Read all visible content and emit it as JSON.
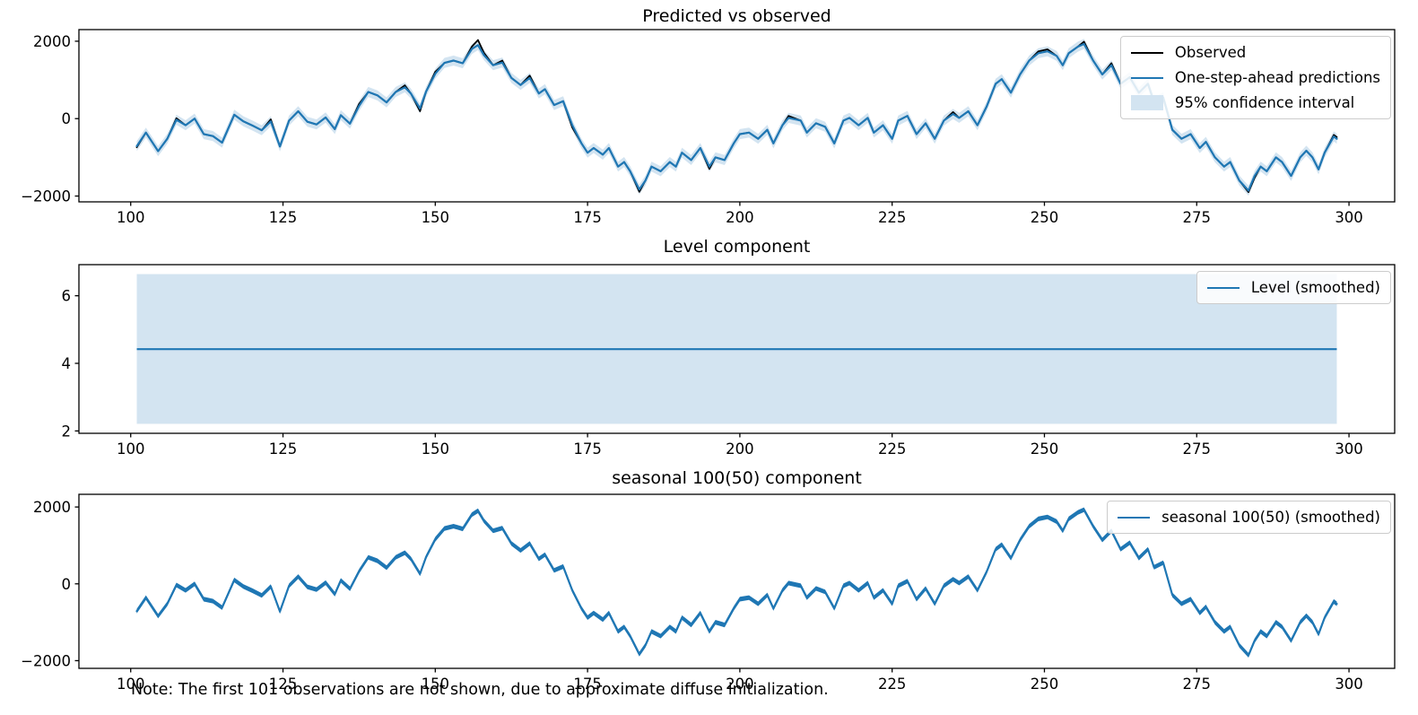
{
  "figure": {
    "note": "Note: The first 101 observations are not shown, due to approximate diffuse initialization."
  },
  "colors": {
    "observed": "#000000",
    "prediction": "#1f77b4",
    "confidence_band": "#d3e4f1",
    "axis": "#000000",
    "legend_border": "#cccccc",
    "background": "#ffffff"
  },
  "chart_data": [
    {
      "type": "line",
      "title": "Predicted vs observed",
      "legend": [
        "Observed",
        "One-step-ahead predictions",
        "95% confidence interval"
      ],
      "legend_position": "upper right",
      "grid": false,
      "xlim": [
        91.5,
        307.5
      ],
      "ylim": [
        -2150,
        2300
      ],
      "x_ticks": [
        100,
        125,
        150,
        175,
        200,
        225,
        250,
        275,
        300
      ],
      "x_tick_labels": [
        "100",
        "125",
        "150",
        "175",
        "200",
        "225",
        "250",
        "275",
        "300"
      ],
      "y_ticks": [
        2000,
        0,
        -2000
      ],
      "y_tick_labels": [
        "2000",
        "0",
        "−2000"
      ],
      "x": [
        101,
        102.5,
        104.5,
        106,
        107.5,
        109,
        110.5,
        112,
        113.5,
        115,
        117,
        118.5,
        120,
        121.5,
        123,
        124.5,
        126,
        127.5,
        129,
        130.5,
        132,
        133.5,
        134.5,
        136,
        137.5,
        139,
        140.5,
        142,
        143.5,
        145,
        146,
        147.5,
        148.5,
        150,
        151.5,
        153,
        154.5,
        156,
        157,
        158,
        159.5,
        161,
        162.5,
        164,
        165.5,
        167,
        168,
        169.5,
        171,
        172.5,
        174,
        175,
        176,
        177.5,
        178.5,
        180,
        181,
        182,
        183.5,
        184.5,
        185.5,
        187,
        188.5,
        189.5,
        190.5,
        192,
        193.5,
        195,
        196,
        197.5,
        199,
        200,
        201.5,
        203,
        204.5,
        205.5,
        207,
        208,
        210,
        211,
        212.5,
        214,
        215.5,
        217,
        218,
        219.5,
        221,
        222,
        223.5,
        225,
        226,
        227.5,
        229,
        230.5,
        232,
        233.5,
        235,
        236,
        237.5,
        239,
        240.5,
        242,
        243,
        244.5,
        246,
        247.5,
        249,
        250.5,
        252,
        253,
        254,
        255.5,
        256.5,
        258,
        259.5,
        261,
        262.5,
        264,
        265.5,
        267,
        268,
        269.5,
        271,
        272.5,
        274,
        275.5,
        276.5,
        278,
        279.5,
        280.5,
        282,
        283.5,
        284.5,
        285.5,
        286.5,
        288,
        289,
        290.5,
        292,
        293,
        294,
        295,
        296,
        297.5,
        298
      ],
      "series": [
        {
          "name": "Observed",
          "color": "#000000",
          "values": [
            -740,
            -360,
            -840,
            -520,
            10,
            -170,
            0,
            -400,
            -450,
            -620,
            100,
            -70,
            -180,
            -300,
            -20,
            -720,
            -50,
            190,
            -80,
            -150,
            30,
            -270,
            90,
            -130,
            380,
            690,
            600,
            420,
            690,
            860,
            650,
            190,
            700,
            1210,
            1440,
            1500,
            1430,
            1860,
            2030,
            1700,
            1380,
            1500,
            1050,
            870,
            1110,
            650,
            760,
            350,
            450,
            -230,
            -640,
            -880,
            -760,
            -930,
            -760,
            -1240,
            -1120,
            -1360,
            -1890,
            -1600,
            -1240,
            -1360,
            -1120,
            -1240,
            -880,
            -1070,
            -760,
            -1300,
            -1000,
            -1070,
            -640,
            -400,
            -360,
            -520,
            -290,
            -640,
            -170,
            70,
            -50,
            -360,
            -120,
            -210,
            -640,
            -50,
            20,
            -170,
            20,
            -360,
            -170,
            -520,
            -50,
            70,
            -400,
            -120,
            -520,
            -50,
            170,
            20,
            190,
            -170,
            310,
            900,
            1020,
            670,
            1140,
            1500,
            1740,
            1790,
            1620,
            1380,
            1690,
            1860,
            1990,
            1500,
            1140,
            1430,
            900,
            1070,
            670,
            900,
            430,
            550,
            -290,
            -520,
            -400,
            -760,
            -600,
            -1000,
            -1240,
            -1120,
            -1600,
            -1900,
            -1530,
            -1240,
            -1360,
            -1000,
            -1120,
            -1480,
            -1000,
            -830,
            -1000,
            -1310,
            -880,
            -420,
            -480
          ]
        },
        {
          "name": "One-step-ahead predictions",
          "color": "#1f77b4",
          "values": [
            -710,
            -360,
            -840,
            -520,
            -30,
            -170,
            0,
            -400,
            -450,
            -620,
            100,
            -70,
            -180,
            -300,
            -70,
            -720,
            -50,
            190,
            -80,
            -150,
            30,
            -270,
            90,
            -130,
            330,
            690,
            600,
            420,
            690,
            810,
            650,
            260,
            700,
            1160,
            1440,
            1500,
            1430,
            1800,
            1900,
            1640,
            1380,
            1450,
            1050,
            870,
            1050,
            650,
            760,
            350,
            450,
            -170,
            -640,
            -880,
            -760,
            -930,
            -760,
            -1240,
            -1120,
            -1360,
            -1830,
            -1600,
            -1240,
            -1360,
            -1120,
            -1240,
            -880,
            -1070,
            -760,
            -1240,
            -1000,
            -1070,
            -640,
            -400,
            -360,
            -520,
            -290,
            -640,
            -170,
            20,
            -50,
            -360,
            -120,
            -210,
            -640,
            -50,
            20,
            -170,
            20,
            -360,
            -170,
            -520,
            -50,
            70,
            -400,
            -120,
            -520,
            -50,
            120,
            20,
            190,
            -170,
            310,
            900,
            1020,
            670,
            1140,
            1500,
            1690,
            1740,
            1620,
            1380,
            1690,
            1860,
            1930,
            1500,
            1140,
            1380,
            900,
            1070,
            670,
            900,
            430,
            550,
            -290,
            -520,
            -400,
            -760,
            -600,
            -1000,
            -1240,
            -1120,
            -1600,
            -1860,
            -1480,
            -1240,
            -1360,
            -1000,
            -1120,
            -1480,
            -1000,
            -830,
            -1000,
            -1310,
            -880,
            -460,
            -520
          ]
        },
        {
          "name": "95% confidence interval",
          "band_around": "One-step-ahead predictions",
          "halfwidth": 130,
          "color": "#d3e4f1"
        }
      ]
    },
    {
      "type": "line",
      "title": "Level component",
      "legend": [
        "Level (smoothed)"
      ],
      "legend_position": "upper right",
      "grid": false,
      "xlim": [
        91.5,
        307.5
      ],
      "ylim": [
        1.93,
        6.92
      ],
      "x_ticks": [
        100,
        125,
        150,
        175,
        200,
        225,
        250,
        275,
        300
      ],
      "x_tick_labels": [
        "100",
        "125",
        "150",
        "175",
        "200",
        "225",
        "250",
        "275",
        "300"
      ],
      "y_ticks": [
        6,
        4,
        2
      ],
      "y_tick_labels": [
        "6",
        "4",
        "2"
      ],
      "level": {
        "x_start": 101,
        "x_end": 298,
        "value": 4.42,
        "ci_low": 2.21,
        "ci_high": 6.64
      },
      "series": [
        {
          "name": "Level (smoothed)",
          "color": "#1f77b4"
        }
      ]
    },
    {
      "type": "line",
      "title": "seasonal 100(50) component",
      "legend": [
        "seasonal 100(50) (smoothed)"
      ],
      "legend_position": "upper right",
      "grid": false,
      "xlim": [
        91.5,
        307.5
      ],
      "ylim": [
        -2200,
        2330
      ],
      "x_ticks": [
        100,
        125,
        150,
        175,
        200,
        225,
        250,
        275,
        300
      ],
      "x_tick_labels": [
        "100",
        "125",
        "150",
        "175",
        "200",
        "225",
        "250",
        "275",
        "300"
      ],
      "y_ticks": [
        2000,
        0,
        -2000
      ],
      "y_tick_labels": [
        "2000",
        "0",
        "−2000"
      ],
      "x": [
        101,
        102.5,
        104.5,
        106,
        107.5,
        109,
        110.5,
        112,
        113.5,
        115,
        117,
        118.5,
        120,
        121.5,
        123,
        124.5,
        126,
        127.5,
        129,
        130.5,
        132,
        133.5,
        134.5,
        136,
        137.5,
        139,
        140.5,
        142,
        143.5,
        145,
        146,
        147.5,
        148.5,
        150,
        151.5,
        153,
        154.5,
        156,
        157,
        158,
        159.5,
        161,
        162.5,
        164,
        165.5,
        167,
        168,
        169.5,
        171,
        172.5,
        174,
        175,
        176,
        177.5,
        178.5,
        180,
        181,
        182,
        183.5,
        184.5,
        185.5,
        187,
        188.5,
        189.5,
        190.5,
        192,
        193.5,
        195,
        196,
        197.5,
        199,
        200,
        201.5,
        203,
        204.5,
        205.5,
        207,
        208,
        210,
        211,
        212.5,
        214,
        215.5,
        217,
        218,
        219.5,
        221,
        222,
        223.5,
        225,
        226,
        227.5,
        229,
        230.5,
        232,
        233.5,
        235,
        236,
        237.5,
        239,
        240.5,
        242,
        243,
        244.5,
        246,
        247.5,
        249,
        250.5,
        252,
        253,
        254,
        255.5,
        256.5,
        258,
        259.5,
        261,
        262.5,
        264,
        265.5,
        267,
        268,
        269.5,
        271,
        272.5,
        274,
        275.5,
        276.5,
        278,
        279.5,
        280.5,
        282,
        283.5,
        284.5,
        285.5,
        286.5,
        288,
        289,
        290.5,
        292,
        293,
        294,
        295,
        296,
        297.5,
        298
      ],
      "series": [
        {
          "name": "seasonal 100(50) (smoothed)",
          "color": "#1f77b4",
          "ci_halfwidth": 60,
          "ci_color": "#d3e4f1",
          "values": [
            -710,
            -360,
            -840,
            -520,
            -30,
            -170,
            0,
            -400,
            -450,
            -620,
            100,
            -70,
            -180,
            -300,
            -70,
            -720,
            -50,
            190,
            -80,
            -150,
            30,
            -270,
            90,
            -130,
            330,
            690,
            600,
            420,
            690,
            810,
            650,
            260,
            700,
            1160,
            1440,
            1500,
            1430,
            1800,
            1900,
            1640,
            1380,
            1450,
            1050,
            870,
            1050,
            650,
            760,
            350,
            450,
            -170,
            -640,
            -880,
            -760,
            -930,
            -760,
            -1240,
            -1120,
            -1360,
            -1830,
            -1600,
            -1240,
            -1360,
            -1120,
            -1240,
            -880,
            -1070,
            -760,
            -1240,
            -1000,
            -1070,
            -640,
            -400,
            -360,
            -520,
            -290,
            -640,
            -170,
            20,
            -50,
            -360,
            -120,
            -210,
            -640,
            -50,
            20,
            -170,
            20,
            -360,
            -170,
            -520,
            -50,
            70,
            -400,
            -120,
            -520,
            -50,
            120,
            20,
            190,
            -170,
            310,
            900,
            1020,
            670,
            1140,
            1500,
            1690,
            1740,
            1620,
            1380,
            1690,
            1860,
            1930,
            1500,
            1140,
            1380,
            900,
            1070,
            670,
            900,
            430,
            550,
            -290,
            -520,
            -400,
            -760,
            -600,
            -1000,
            -1240,
            -1120,
            -1600,
            -1860,
            -1480,
            -1240,
            -1360,
            -1000,
            -1120,
            -1480,
            -1000,
            -830,
            -1000,
            -1310,
            -880,
            -460,
            -520
          ]
        }
      ]
    }
  ]
}
